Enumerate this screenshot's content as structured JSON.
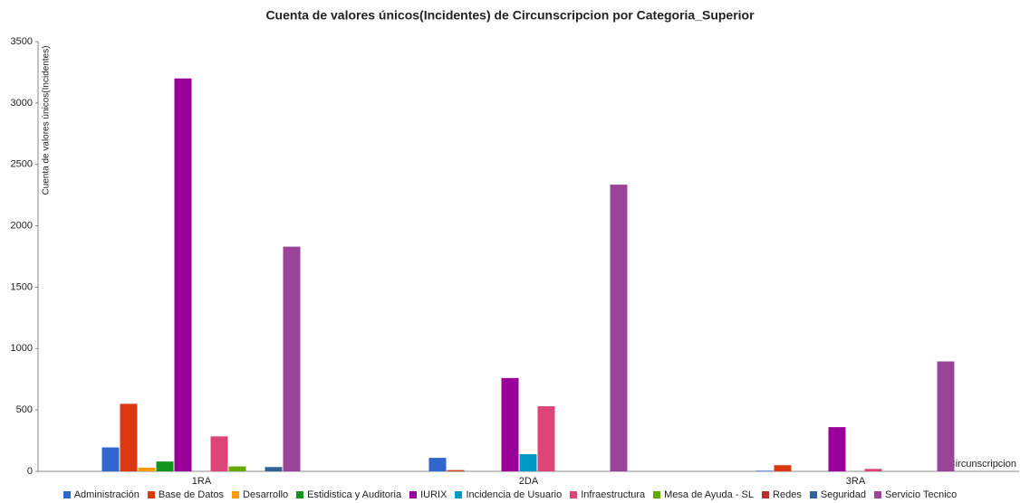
{
  "chart_data": {
    "type": "bar",
    "title": "Cuenta de valores únicos(Incidentes) de Circunscripcion por Categoria_Superior",
    "y_label": "Cuenta de valores únicos(Incidentes)",
    "x_label": "Circunscripcion",
    "categories": [
      "1RA",
      "2DA",
      "3RA"
    ],
    "ylim": [
      0,
      3500
    ],
    "yticks": [
      0,
      500,
      1000,
      1500,
      2000,
      2500,
      3000,
      3500
    ],
    "grid": false,
    "legend": "bottom",
    "series": [
      {
        "name": "Administración",
        "color": "#3366cc",
        "values": [
          195,
          110,
          5
        ]
      },
      {
        "name": "Base de Datos",
        "color": "#dc3912",
        "values": [
          550,
          10,
          50
        ]
      },
      {
        "name": "Desarrollo",
        "color": "#ff9900",
        "values": [
          30,
          0,
          0
        ]
      },
      {
        "name": "Estidistica y Auditoria",
        "color": "#109618",
        "values": [
          80,
          0,
          0
        ]
      },
      {
        "name": "IURIX",
        "color": "#990099",
        "values": [
          3200,
          760,
          360
        ]
      },
      {
        "name": "Incidencia de Usuario",
        "color": "#0099c6",
        "values": [
          0,
          140,
          0
        ]
      },
      {
        "name": "Infraestructura",
        "color": "#dd4477",
        "values": [
          285,
          530,
          20
        ]
      },
      {
        "name": "Mesa de Ayuda - SL",
        "color": "#66aa00",
        "values": [
          40,
          0,
          0
        ]
      },
      {
        "name": "Redes",
        "color": "#b82e2e",
        "values": [
          0,
          0,
          0
        ]
      },
      {
        "name": "Seguridad",
        "color": "#316395",
        "values": [
          35,
          0,
          0
        ]
      },
      {
        "name": "Servicio Tecnico",
        "color": "#994499",
        "values": [
          1830,
          2335,
          895
        ]
      }
    ]
  }
}
